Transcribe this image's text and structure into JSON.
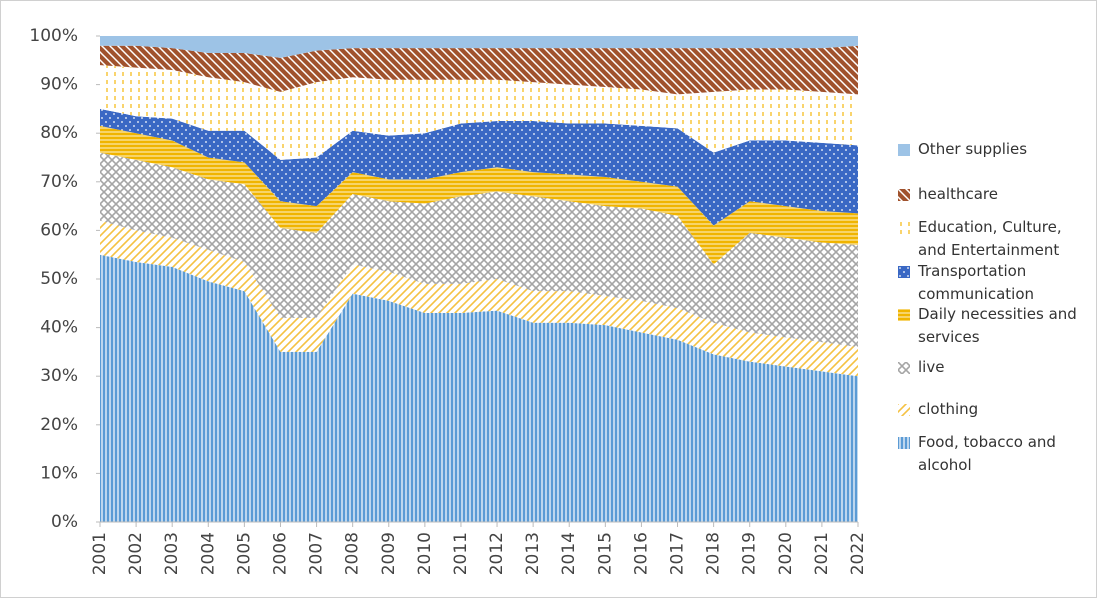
{
  "chart_data": {
    "type": "stacked_area",
    "categories": [
      "2001",
      "2002",
      "2003",
      "2004",
      "2005",
      "2006",
      "2007",
      "2008",
      "2009",
      "2010",
      "2011",
      "2012",
      "2013",
      "2014",
      "2015",
      "2016",
      "2017",
      "2018",
      "2019",
      "2020",
      "2021",
      "2022"
    ],
    "series": [
      {
        "name": "Food, tobacco and alcohol",
        "color": "#5b9bd5",
        "values": [
          55,
          53.5,
          52.5,
          49.5,
          47.5,
          35,
          35,
          47,
          45.5,
          43,
          43,
          43.5,
          41,
          41,
          40.5,
          39,
          37.5,
          34.5,
          33,
          32,
          31,
          30
        ]
      },
      {
        "name": "clothing",
        "color": "#f5c242",
        "values": [
          7,
          6.5,
          6,
          6.5,
          6,
          7,
          7,
          6,
          6,
          6,
          6,
          6.5,
          6.5,
          6.5,
          6,
          6.5,
          6.5,
          6.5,
          6,
          6,
          6,
          6
        ]
      },
      {
        "name": "live",
        "color": "#a5a5a5",
        "values": [
          14,
          14.5,
          14.5,
          14.5,
          16,
          18.5,
          17.5,
          14.5,
          14.5,
          16.5,
          18,
          18,
          19.5,
          18.5,
          18.5,
          19,
          19,
          12,
          20.5,
          20.5,
          20.5,
          21
        ]
      },
      {
        "name": "Daily necessities and services",
        "color": "#f0b400",
        "values": [
          5.5,
          5.5,
          5.5,
          4.5,
          4.5,
          5.5,
          5.5,
          4.5,
          4.5,
          5,
          5,
          5,
          5,
          5.5,
          6,
          5.5,
          6,
          8,
          6.5,
          6.5,
          6.5,
          6.5
        ]
      },
      {
        "name": "Transportation communication",
        "color": "#3a68c4",
        "values": [
          3.5,
          3.5,
          4.5,
          5.5,
          6.5,
          8.5,
          10,
          8.5,
          9,
          9.5,
          10,
          9.5,
          10.5,
          10.5,
          11,
          11.5,
          12,
          15,
          12.5,
          13.5,
          14,
          14
        ]
      },
      {
        "name": "Education, Culture, and Entertainment",
        "color": "#f7c53c",
        "values": [
          9,
          10,
          10,
          11,
          10,
          14,
          15.5,
          11,
          11.5,
          11,
          9,
          8.5,
          8,
          8,
          7.5,
          7.5,
          7,
          12.5,
          10.5,
          10.5,
          10.5,
          10.5
        ]
      },
      {
        "name": "healthcare",
        "color": "#a0522d",
        "values": [
          4,
          4.5,
          4.5,
          5,
          6,
          7,
          6.5,
          6,
          6.5,
          6.5,
          6.5,
          6.5,
          7,
          7.5,
          8,
          8.5,
          9.5,
          9,
          8.5,
          8.5,
          9,
          10
        ]
      },
      {
        "name": "Other supplies",
        "color": "#9dc3e6",
        "values": [
          2,
          2,
          2.5,
          3.5,
          3.5,
          4.5,
          3,
          2.5,
          2.5,
          2.5,
          2.5,
          2.5,
          2.5,
          2.5,
          2.5,
          2.5,
          2.5,
          2.5,
          2.5,
          2.5,
          2.5,
          2
        ]
      }
    ],
    "ylim": [
      0,
      100
    ],
    "yticks": [
      {
        "value": 0,
        "label": "0%"
      },
      {
        "value": 10,
        "label": "10%"
      },
      {
        "value": 20,
        "label": "20%"
      },
      {
        "value": 30,
        "label": "30%"
      },
      {
        "value": 40,
        "label": "40%"
      },
      {
        "value": 50,
        "label": "50%"
      },
      {
        "value": 60,
        "label": "60%"
      },
      {
        "value": 70,
        "label": "70%"
      },
      {
        "value": 80,
        "label": "80%"
      },
      {
        "value": 90,
        "label": "90%"
      },
      {
        "value": 100,
        "label": "100%"
      }
    ]
  }
}
